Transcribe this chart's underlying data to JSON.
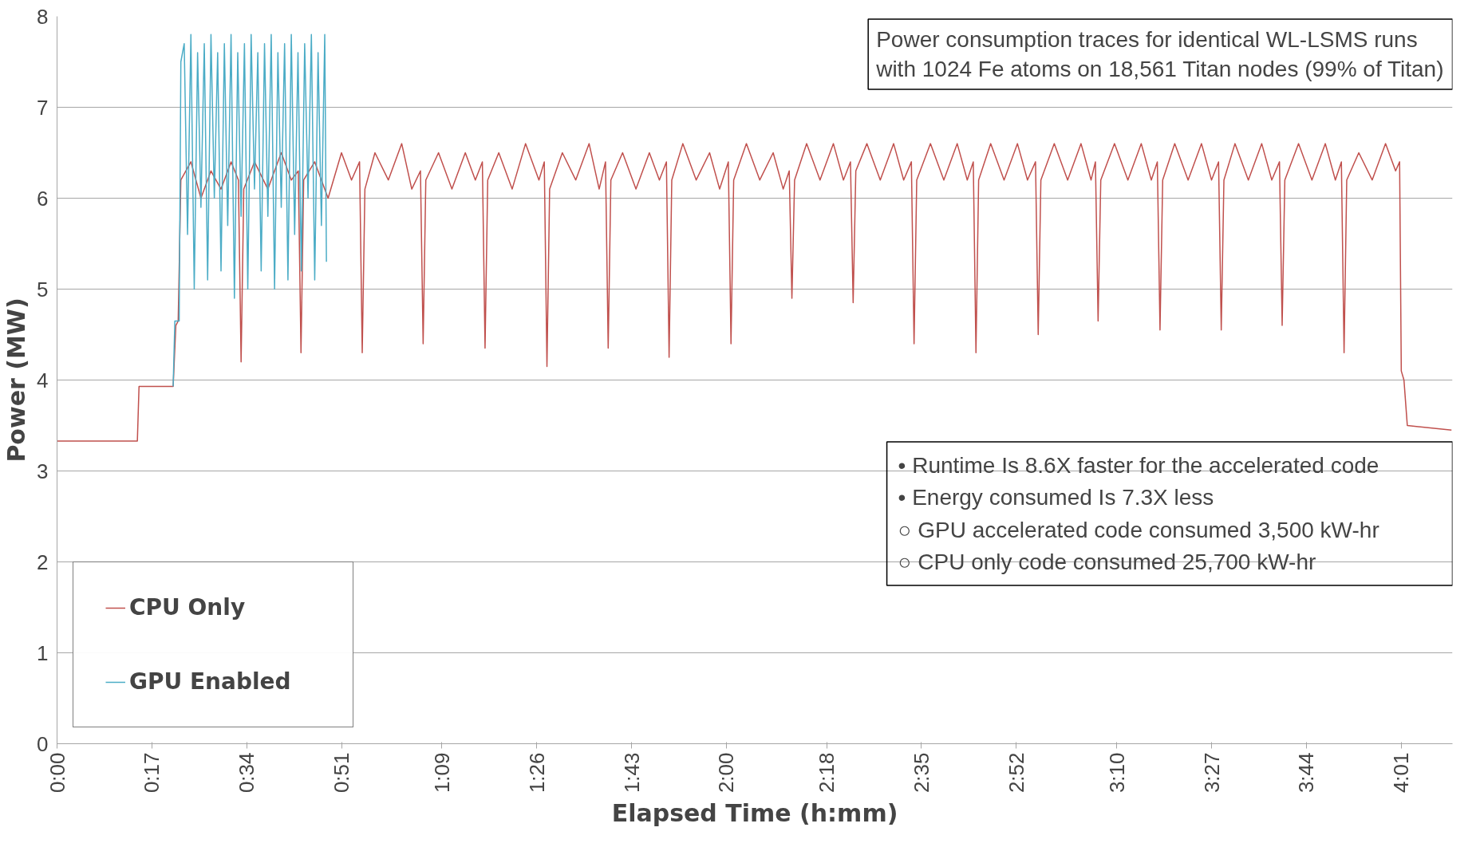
{
  "chart_data": {
    "type": "line",
    "xlabel": "Elapsed Time (h:mm)",
    "ylabel": "Power (MW)",
    "xlim": [
      0,
      4.17
    ],
    "ylim": [
      0,
      8
    ],
    "xticks": [
      {
        "value": 0,
        "label": "0:00"
      },
      {
        "value": 0.2833,
        "label": "0:17"
      },
      {
        "value": 0.5667,
        "label": "0:34"
      },
      {
        "value": 0.85,
        "label": "0:51"
      },
      {
        "value": 1.15,
        "label": "1:09"
      },
      {
        "value": 1.4333,
        "label": "1:26"
      },
      {
        "value": 1.7167,
        "label": "1:43"
      },
      {
        "value": 2.0,
        "label": "2:00"
      },
      {
        "value": 2.3,
        "label": "2:18"
      },
      {
        "value": 2.5833,
        "label": "2:35"
      },
      {
        "value": 2.8667,
        "label": "2:52"
      },
      {
        "value": 3.1667,
        "label": "3:10"
      },
      {
        "value": 3.45,
        "label": "3:27"
      },
      {
        "value": 3.7333,
        "label": "3:44"
      },
      {
        "value": 4.0167,
        "label": "4:01"
      }
    ],
    "yticks": [
      0,
      1,
      2,
      3,
      4,
      5,
      6,
      7,
      8
    ],
    "grid": "y",
    "legend": "bottom left",
    "line_style": "solid",
    "series": [
      {
        "name": "CPU Only",
        "color": "#c0504d",
        "x": [
          0,
          0.24,
          0.245,
          0.347,
          0.355,
          0.362,
          0.37,
          0.4,
          0.43,
          0.46,
          0.49,
          0.52,
          0.542,
          0.55,
          0.558,
          0.59,
          0.63,
          0.67,
          0.7,
          0.721,
          0.729,
          0.737,
          0.77,
          0.81,
          0.85,
          0.88,
          0.904,
          0.912,
          0.92,
          0.95,
          0.99,
          1.03,
          1.06,
          1.086,
          1.094,
          1.102,
          1.14,
          1.18,
          1.22,
          1.25,
          1.271,
          1.279,
          1.287,
          1.32,
          1.36,
          1.4,
          1.44,
          1.456,
          1.464,
          1.472,
          1.51,
          1.55,
          1.59,
          1.62,
          1.639,
          1.647,
          1.655,
          1.69,
          1.73,
          1.77,
          1.8,
          1.821,
          1.829,
          1.837,
          1.87,
          1.91,
          1.95,
          1.98,
          2.006,
          2.014,
          2.022,
          2.06,
          2.1,
          2.14,
          2.17,
          2.188,
          2.196,
          2.204,
          2.24,
          2.28,
          2.32,
          2.35,
          2.371,
          2.379,
          2.387,
          2.42,
          2.46,
          2.5,
          2.53,
          2.553,
          2.561,
          2.569,
          2.61,
          2.65,
          2.69,
          2.72,
          2.738,
          2.746,
          2.754,
          2.79,
          2.83,
          2.87,
          2.9,
          2.924,
          2.932,
          2.94,
          2.98,
          3.02,
          3.06,
          3.09,
          3.103,
          3.111,
          3.119,
          3.16,
          3.2,
          3.24,
          3.27,
          3.288,
          3.296,
          3.304,
          3.34,
          3.38,
          3.42,
          3.45,
          3.471,
          3.479,
          3.487,
          3.52,
          3.56,
          3.6,
          3.63,
          3.653,
          3.661,
          3.669,
          3.71,
          3.75,
          3.79,
          3.82,
          3.838,
          3.846,
          3.854,
          3.89,
          3.93,
          3.97,
          4.0,
          4.012,
          4.017,
          4.025,
          4.035,
          4.167
        ],
        "values": [
          3.33,
          3.33,
          3.93,
          3.93,
          4.6,
          4.65,
          6.2,
          6.4,
          6.0,
          6.3,
          6.1,
          6.4,
          6.2,
          4.2,
          6.1,
          6.4,
          6.1,
          6.5,
          6.2,
          6.3,
          4.3,
          6.2,
          6.4,
          6.0,
          6.5,
          6.2,
          6.4,
          4.3,
          6.1,
          6.5,
          6.2,
          6.6,
          6.1,
          6.3,
          4.4,
          6.2,
          6.5,
          6.1,
          6.5,
          6.2,
          6.4,
          4.35,
          6.2,
          6.5,
          6.1,
          6.6,
          6.2,
          6.4,
          4.15,
          6.1,
          6.5,
          6.2,
          6.6,
          6.1,
          6.4,
          4.35,
          6.2,
          6.5,
          6.1,
          6.5,
          6.2,
          6.4,
          4.25,
          6.2,
          6.6,
          6.2,
          6.5,
          6.1,
          6.4,
          4.4,
          6.2,
          6.6,
          6.2,
          6.5,
          6.1,
          6.3,
          4.9,
          6.2,
          6.6,
          6.2,
          6.6,
          6.2,
          6.4,
          4.85,
          6.3,
          6.6,
          6.2,
          6.6,
          6.2,
          6.4,
          4.4,
          6.2,
          6.6,
          6.2,
          6.6,
          6.2,
          6.4,
          4.3,
          6.2,
          6.6,
          6.2,
          6.6,
          6.2,
          6.4,
          4.5,
          6.2,
          6.6,
          6.2,
          6.6,
          6.2,
          6.4,
          4.65,
          6.2,
          6.6,
          6.2,
          6.6,
          6.2,
          6.4,
          4.55,
          6.2,
          6.6,
          6.2,
          6.6,
          6.2,
          6.4,
          4.55,
          6.2,
          6.6,
          6.2,
          6.6,
          6.2,
          6.4,
          4.6,
          6.2,
          6.6,
          6.2,
          6.6,
          6.2,
          6.4,
          4.3,
          6.2,
          6.5,
          6.2,
          6.6,
          6.3,
          6.4,
          4.1,
          4.0,
          3.5,
          3.45
        ]
      },
      {
        "name": "GPU Enabled",
        "color": "#4bacc6",
        "x": [
          0.347,
          0.352,
          0.365,
          0.37,
          0.38,
          0.39,
          0.4,
          0.41,
          0.42,
          0.43,
          0.44,
          0.45,
          0.46,
          0.47,
          0.48,
          0.49,
          0.5,
          0.51,
          0.52,
          0.53,
          0.54,
          0.55,
          0.56,
          0.57,
          0.58,
          0.59,
          0.6,
          0.61,
          0.62,
          0.63,
          0.64,
          0.65,
          0.66,
          0.67,
          0.68,
          0.69,
          0.7,
          0.71,
          0.72,
          0.73,
          0.74,
          0.75,
          0.76,
          0.77,
          0.78,
          0.79,
          0.8,
          0.805
        ],
        "values": [
          3.93,
          4.65,
          4.65,
          7.5,
          7.7,
          5.6,
          7.8,
          5.0,
          7.6,
          5.9,
          7.7,
          5.1,
          7.8,
          6.0,
          7.6,
          5.2,
          7.7,
          5.7,
          7.8,
          4.9,
          7.6,
          5.8,
          7.7,
          5.0,
          7.8,
          6.1,
          7.6,
          5.2,
          7.7,
          5.8,
          7.8,
          5.0,
          7.6,
          5.9,
          7.7,
          5.1,
          7.8,
          5.6,
          7.6,
          5.2,
          7.7,
          6.0,
          7.8,
          5.1,
          7.6,
          5.7,
          7.8,
          5.3
        ]
      }
    ],
    "annotations": [
      "Power consumption traces for identical WL-LSMS runs\nwith 1024 Fe atoms on 18,561 Titan nodes (99% of Titan)",
      "•   Runtime Is 8.6X faster for the accelerated code",
      "•   Energy consumed Is 7.3X less",
      "        ○   GPU accelerated code consumed 3,500 kW-hr",
      "        ○   CPU only code consumed 25,700 kW-hr"
    ]
  }
}
